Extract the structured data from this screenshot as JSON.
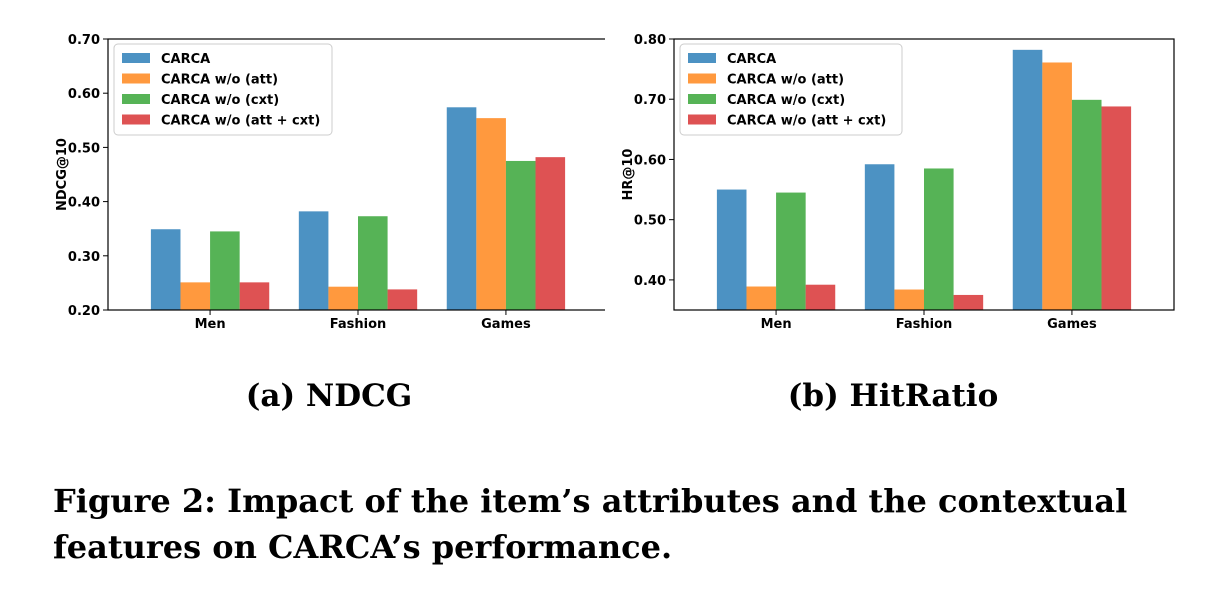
{
  "chart_data": [
    {
      "type": "bar",
      "categories": [
        "Men",
        "Fashion",
        "Games"
      ],
      "series": [
        {
          "name": "CARCA",
          "color": "#1f77b4",
          "values": [
            0.349,
            0.382,
            0.574
          ]
        },
        {
          "name": "CARCA w/o (att)",
          "color": "#ff7f0e",
          "values": [
            0.251,
            0.243,
            0.554
          ]
        },
        {
          "name": "CARCA w/o (cxt)",
          "color": "#2ca02c",
          "values": [
            0.345,
            0.373,
            0.475
          ]
        },
        {
          "name": "CARCA w/o (att + cxt)",
          "color": "#d62728",
          "values": [
            0.251,
            0.238,
            0.482
          ]
        }
      ],
      "ylabel": "NDCG@10",
      "ylim": [
        0.2,
        0.7
      ],
      "yticks": [
        "0.20",
        "0.30",
        "0.40",
        "0.50",
        "0.60",
        "0.70"
      ],
      "legend": "upper-left",
      "grid": false
    },
    {
      "type": "bar",
      "categories": [
        "Men",
        "Fashion",
        "Games"
      ],
      "series": [
        {
          "name": "CARCA",
          "color": "#1f77b4",
          "values": [
            0.55,
            0.592,
            0.782
          ]
        },
        {
          "name": "CARCA w/o (att)",
          "color": "#ff7f0e",
          "values": [
            0.389,
            0.384,
            0.761
          ]
        },
        {
          "name": "CARCA w/o (cxt)",
          "color": "#2ca02c",
          "values": [
            0.545,
            0.585,
            0.699
          ]
        },
        {
          "name": "CARCA w/o (att + cxt)",
          "color": "#d62728",
          "values": [
            0.392,
            0.375,
            0.688
          ]
        }
      ],
      "ylabel": "HR@10",
      "ylim": [
        0.35,
        0.8
      ],
      "yticks": [
        "0.40",
        "0.50",
        "0.60",
        "0.70",
        "0.80"
      ],
      "legend": "upper-left",
      "grid": false
    }
  ],
  "subcaptions": [
    "(a) NDCG",
    "(b) HitRatio"
  ],
  "caption": "Figure 2: Impact of the item’s attributes and the contextual features on CARCA’s performance."
}
